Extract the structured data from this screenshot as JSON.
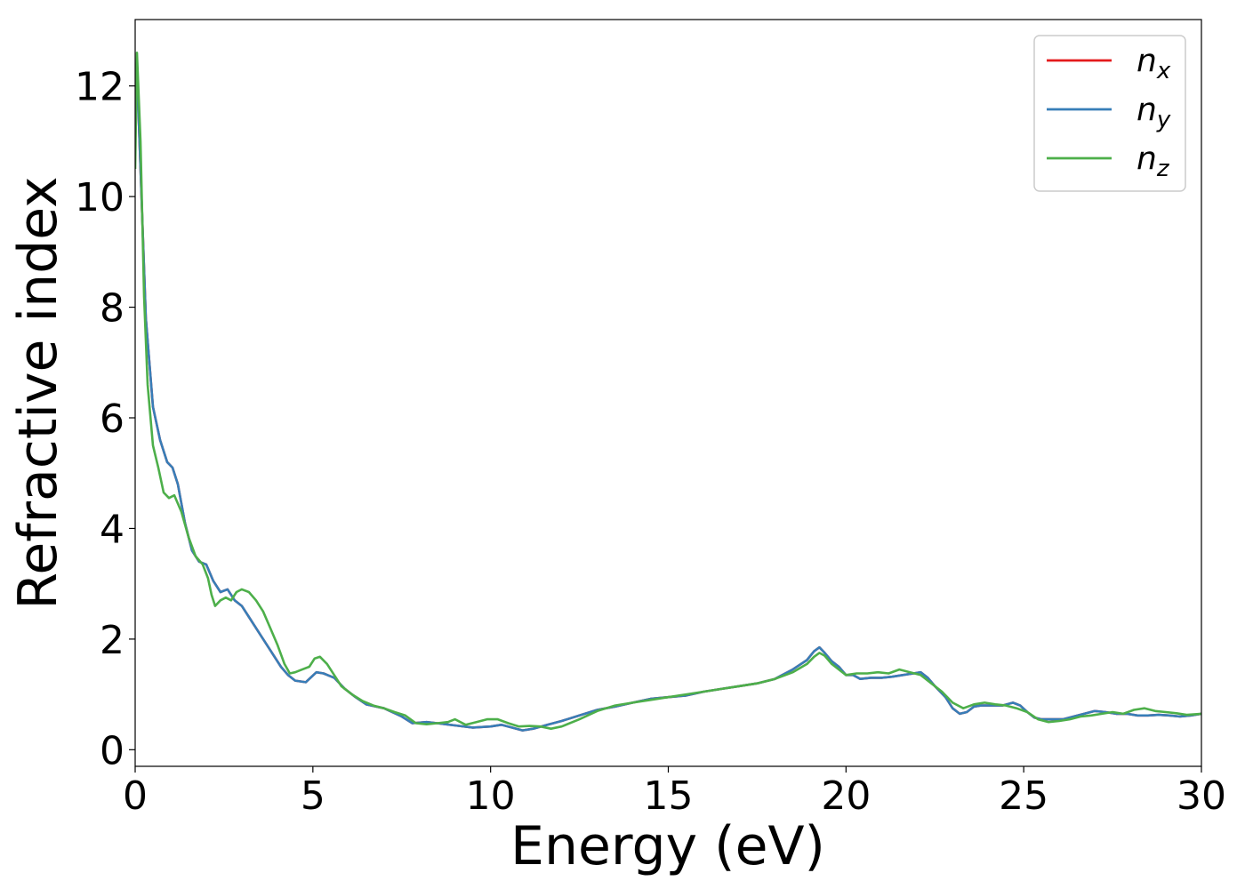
{
  "chart_data": {
    "type": "line",
    "title": "",
    "xlabel": "Energy (eV)",
    "ylabel": "Refractive index",
    "xlim": [
      0,
      30
    ],
    "ylim": [
      -0.3,
      13.2
    ],
    "xticks": [
      0,
      5,
      10,
      15,
      20,
      25,
      30
    ],
    "yticks": [
      0,
      2,
      4,
      6,
      8,
      10,
      12
    ],
    "grid": false,
    "legend": "top-right",
    "series": [
      {
        "name": "n",
        "subscript": "x",
        "color": "#e41a1c",
        "x": [
          0.0,
          0.05,
          0.15,
          0.3,
          0.5,
          0.7,
          0.9,
          1.05,
          1.2,
          1.4,
          1.6,
          1.8,
          2.0,
          2.2,
          2.4,
          2.6,
          2.8,
          3.0,
          3.2,
          3.5,
          3.8,
          4.1,
          4.3,
          4.5,
          4.8,
          5.1,
          5.3,
          5.6,
          5.9,
          6.2,
          6.5,
          7.0,
          7.5,
          7.8,
          8.2,
          8.5,
          9.0,
          9.5,
          10.0,
          10.3,
          10.6,
          10.9,
          11.2,
          11.6,
          12.0,
          12.5,
          13.0,
          13.5,
          14.0,
          14.5,
          15.0,
          15.5,
          16.0,
          16.5,
          17.0,
          17.5,
          18.0,
          18.5,
          18.9,
          19.1,
          19.25,
          19.4,
          19.6,
          19.8,
          20.0,
          20.2,
          20.4,
          20.7,
          21.0,
          21.3,
          21.6,
          21.9,
          22.1,
          22.3,
          22.5,
          22.8,
          23.0,
          23.2,
          23.4,
          23.6,
          23.8,
          24.1,
          24.4,
          24.7,
          24.9,
          25.1,
          25.3,
          25.5,
          25.8,
          26.1,
          26.4,
          26.7,
          27.0,
          27.3,
          27.6,
          27.9,
          28.2,
          28.5,
          28.8,
          29.1,
          29.4,
          29.7,
          30.0
        ],
        "y": [
          11.4,
          12.3,
          10.5,
          7.8,
          6.2,
          5.6,
          5.2,
          5.1,
          4.8,
          4.1,
          3.6,
          3.4,
          3.35,
          3.05,
          2.85,
          2.9,
          2.7,
          2.6,
          2.4,
          2.1,
          1.8,
          1.5,
          1.35,
          1.25,
          1.22,
          1.4,
          1.38,
          1.3,
          1.1,
          0.95,
          0.82,
          0.75,
          0.6,
          0.48,
          0.5,
          0.48,
          0.44,
          0.4,
          0.42,
          0.45,
          0.4,
          0.35,
          0.38,
          0.45,
          0.52,
          0.62,
          0.72,
          0.78,
          0.85,
          0.92,
          0.95,
          0.98,
          1.05,
          1.1,
          1.15,
          1.2,
          1.28,
          1.45,
          1.62,
          1.78,
          1.85,
          1.75,
          1.6,
          1.5,
          1.35,
          1.35,
          1.28,
          1.3,
          1.3,
          1.32,
          1.35,
          1.38,
          1.4,
          1.3,
          1.15,
          0.95,
          0.75,
          0.65,
          0.68,
          0.78,
          0.8,
          0.8,
          0.8,
          0.85,
          0.8,
          0.68,
          0.58,
          0.55,
          0.55,
          0.55,
          0.6,
          0.65,
          0.7,
          0.68,
          0.65,
          0.65,
          0.62,
          0.62,
          0.63,
          0.62,
          0.6,
          0.62,
          0.65
        ]
      },
      {
        "name": "n",
        "subscript": "y",
        "color": "#377eb8",
        "x": [
          0.0,
          0.05,
          0.15,
          0.3,
          0.5,
          0.7,
          0.9,
          1.05,
          1.2,
          1.4,
          1.6,
          1.8,
          2.0,
          2.2,
          2.4,
          2.6,
          2.8,
          3.0,
          3.2,
          3.5,
          3.8,
          4.1,
          4.3,
          4.5,
          4.8,
          5.1,
          5.3,
          5.6,
          5.9,
          6.2,
          6.5,
          7.0,
          7.5,
          7.8,
          8.2,
          8.5,
          9.0,
          9.5,
          10.0,
          10.3,
          10.6,
          10.9,
          11.2,
          11.6,
          12.0,
          12.5,
          13.0,
          13.5,
          14.0,
          14.5,
          15.0,
          15.5,
          16.0,
          16.5,
          17.0,
          17.5,
          18.0,
          18.5,
          18.9,
          19.1,
          19.25,
          19.4,
          19.6,
          19.8,
          20.0,
          20.2,
          20.4,
          20.7,
          21.0,
          21.3,
          21.6,
          21.9,
          22.1,
          22.3,
          22.5,
          22.8,
          23.0,
          23.2,
          23.4,
          23.6,
          23.8,
          24.1,
          24.4,
          24.7,
          24.9,
          25.1,
          25.3,
          25.5,
          25.8,
          26.1,
          26.4,
          26.7,
          27.0,
          27.3,
          27.6,
          27.9,
          28.2,
          28.5,
          28.8,
          29.1,
          29.4,
          29.7,
          30.0
        ],
        "y": [
          11.4,
          12.3,
          10.5,
          7.8,
          6.2,
          5.6,
          5.2,
          5.1,
          4.8,
          4.1,
          3.6,
          3.4,
          3.35,
          3.05,
          2.85,
          2.9,
          2.7,
          2.6,
          2.4,
          2.1,
          1.8,
          1.5,
          1.35,
          1.25,
          1.22,
          1.4,
          1.38,
          1.3,
          1.1,
          0.95,
          0.82,
          0.75,
          0.6,
          0.48,
          0.5,
          0.48,
          0.44,
          0.4,
          0.42,
          0.45,
          0.4,
          0.35,
          0.38,
          0.45,
          0.52,
          0.62,
          0.72,
          0.78,
          0.85,
          0.92,
          0.95,
          0.98,
          1.05,
          1.1,
          1.15,
          1.2,
          1.28,
          1.45,
          1.62,
          1.78,
          1.85,
          1.75,
          1.6,
          1.5,
          1.35,
          1.35,
          1.28,
          1.3,
          1.3,
          1.32,
          1.35,
          1.38,
          1.4,
          1.3,
          1.15,
          0.95,
          0.75,
          0.65,
          0.68,
          0.78,
          0.8,
          0.8,
          0.8,
          0.85,
          0.8,
          0.68,
          0.58,
          0.55,
          0.55,
          0.55,
          0.6,
          0.65,
          0.7,
          0.68,
          0.65,
          0.65,
          0.62,
          0.62,
          0.63,
          0.62,
          0.6,
          0.62,
          0.65
        ]
      },
      {
        "name": "n",
        "subscript": "z",
        "color": "#4daf4a",
        "x": [
          0.0,
          0.05,
          0.15,
          0.25,
          0.35,
          0.5,
          0.65,
          0.8,
          0.95,
          1.1,
          1.3,
          1.5,
          1.7,
          1.9,
          2.05,
          2.15,
          2.25,
          2.4,
          2.55,
          2.7,
          2.85,
          3.0,
          3.2,
          3.4,
          3.6,
          3.8,
          4.0,
          4.2,
          4.35,
          4.5,
          4.7,
          4.9,
          5.05,
          5.2,
          5.4,
          5.6,
          5.8,
          6.1,
          6.4,
          6.7,
          7.0,
          7.3,
          7.6,
          7.9,
          8.2,
          8.5,
          8.8,
          9.0,
          9.3,
          9.6,
          9.9,
          10.2,
          10.5,
          10.8,
          11.1,
          11.4,
          11.7,
          12.0,
          12.5,
          13.0,
          13.5,
          14.0,
          14.5,
          15.0,
          15.5,
          16.0,
          16.5,
          17.0,
          17.5,
          18.0,
          18.5,
          18.9,
          19.1,
          19.25,
          19.4,
          19.6,
          19.8,
          20.0,
          20.3,
          20.6,
          20.9,
          21.2,
          21.5,
          21.8,
          22.1,
          22.4,
          22.7,
          23.0,
          23.3,
          23.6,
          23.9,
          24.2,
          24.5,
          24.8,
          25.1,
          25.4,
          25.7,
          26.0,
          26.3,
          26.6,
          26.9,
          27.2,
          27.5,
          27.8,
          28.1,
          28.4,
          28.7,
          29.0,
          29.3,
          29.6,
          30.0
        ],
        "y": [
          10.5,
          12.6,
          11.0,
          8.2,
          6.6,
          5.5,
          5.1,
          4.65,
          4.55,
          4.6,
          4.3,
          3.85,
          3.5,
          3.35,
          3.1,
          2.8,
          2.6,
          2.7,
          2.75,
          2.7,
          2.85,
          2.9,
          2.85,
          2.7,
          2.5,
          2.2,
          1.9,
          1.55,
          1.38,
          1.4,
          1.45,
          1.5,
          1.65,
          1.68,
          1.55,
          1.35,
          1.15,
          1.0,
          0.88,
          0.8,
          0.75,
          0.68,
          0.62,
          0.48,
          0.46,
          0.48,
          0.5,
          0.55,
          0.45,
          0.5,
          0.55,
          0.55,
          0.48,
          0.42,
          0.43,
          0.42,
          0.38,
          0.42,
          0.55,
          0.7,
          0.8,
          0.85,
          0.9,
          0.95,
          1.0,
          1.05,
          1.1,
          1.15,
          1.2,
          1.28,
          1.4,
          1.55,
          1.68,
          1.75,
          1.7,
          1.55,
          1.45,
          1.35,
          1.38,
          1.38,
          1.4,
          1.38,
          1.45,
          1.4,
          1.35,
          1.2,
          1.05,
          0.85,
          0.75,
          0.82,
          0.85,
          0.82,
          0.8,
          0.75,
          0.68,
          0.55,
          0.5,
          0.52,
          0.55,
          0.6,
          0.62,
          0.65,
          0.68,
          0.65,
          0.72,
          0.75,
          0.7,
          0.68,
          0.66,
          0.63,
          0.65
        ]
      }
    ]
  }
}
